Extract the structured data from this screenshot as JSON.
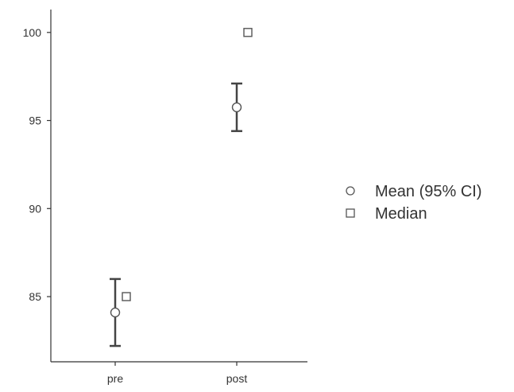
{
  "chart_data": {
    "type": "scatter",
    "title": "",
    "xlabel": "",
    "ylabel": "",
    "categories": [
      "pre",
      "post"
    ],
    "ylim": [
      81.3,
      101.3
    ],
    "yticks": [
      85,
      90,
      95,
      100
    ],
    "series": [
      {
        "name": "Mean (95% CI)",
        "marker": "circle",
        "values": [
          84.1,
          95.75
        ],
        "ci_low": [
          82.2,
          94.4
        ],
        "ci_high": [
          86.0,
          97.1
        ]
      },
      {
        "name": "Median",
        "marker": "square",
        "values": [
          85,
          100
        ]
      }
    ],
    "legend": {
      "placement": "right",
      "items": [
        {
          "label": "Mean (95% CI)",
          "marker": "circle"
        },
        {
          "label": "Median",
          "marker": "square"
        }
      ]
    },
    "grid": false,
    "colors": {
      "axis": "#333333",
      "errorbar": "#444444",
      "marker_stroke": "#555555",
      "marker_fill": "#ffffff",
      "text": "#333333"
    }
  }
}
